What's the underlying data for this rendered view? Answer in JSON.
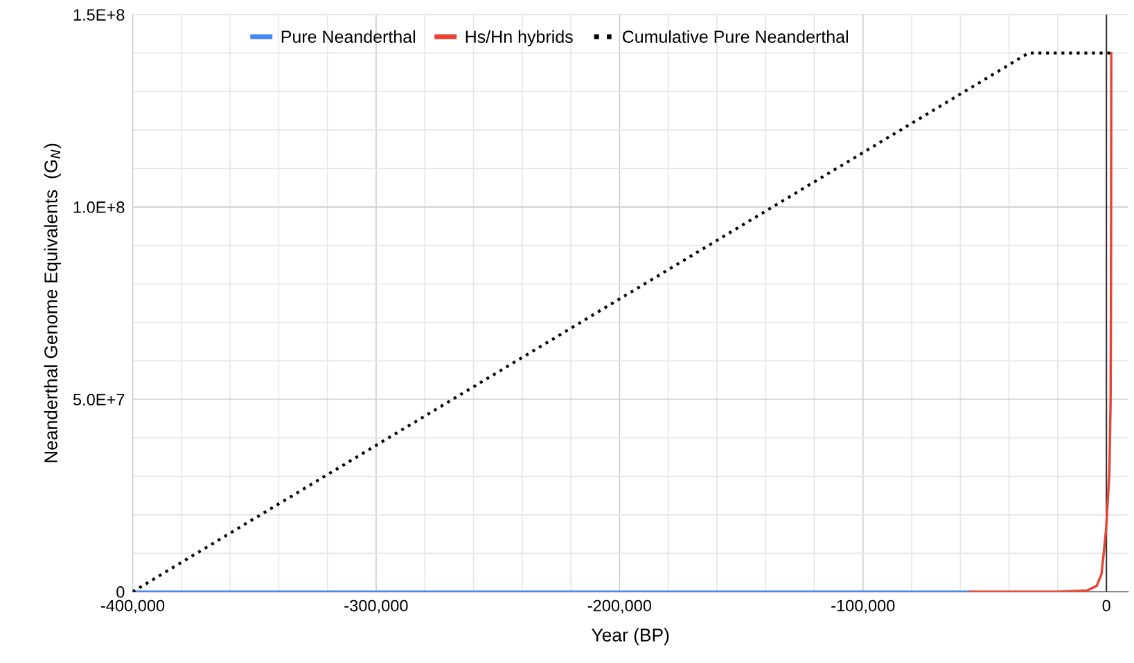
{
  "chart_data": {
    "type": "line",
    "xlabel": "Year (BP)",
    "ylabel": "Neanderthal Genome Equivalents  (G$_{N}$)",
    "series": [
      {
        "name": "Pure Neanderthal",
        "color": "#4285f4",
        "x": [
          -400000,
          -56000
        ],
        "values": [
          0,
          0
        ]
      },
      {
        "name": "Hs/Hn hybrids",
        "color": "#ea4335",
        "x": [
          -56000,
          -20000,
          -8000,
          -4000,
          -2000,
          -200,
          1200,
          1700,
          1900,
          2000
        ],
        "values": [
          0,
          0,
          300000,
          1500000,
          4600000,
          15700000,
          30600000,
          49000000,
          80000000,
          140000000
        ]
      },
      {
        "name": "Cumulative Pure Neanderthal",
        "color": "#000000",
        "line_style": "dotted",
        "x": [
          -400000,
          -32000,
          2000
        ],
        "values": [
          0,
          140000000,
          140000000
        ]
      }
    ],
    "xlim": [
      -400000,
      9000
    ],
    "ylim": [
      0,
      150000000
    ],
    "xticks": [
      {
        "value": -400000,
        "label": "-400,000"
      },
      {
        "value": -380000,
        "label": null
      },
      {
        "value": -360000,
        "label": null
      },
      {
        "value": -340000,
        "label": null
      },
      {
        "value": -320000,
        "label": null
      },
      {
        "value": -300000,
        "label": "-300,000"
      },
      {
        "value": -280000,
        "label": null
      },
      {
        "value": -260000,
        "label": null
      },
      {
        "value": -240000,
        "label": null
      },
      {
        "value": -220000,
        "label": null
      },
      {
        "value": -200000,
        "label": "-200,000"
      },
      {
        "value": -180000,
        "label": null
      },
      {
        "value": -160000,
        "label": null
      },
      {
        "value": -140000,
        "label": null
      },
      {
        "value": -120000,
        "label": null
      },
      {
        "value": -100000,
        "label": "-100,000"
      },
      {
        "value": -80000,
        "label": null
      },
      {
        "value": -60000,
        "label": null
      },
      {
        "value": -40000,
        "label": null
      },
      {
        "value": -20000,
        "label": null
      },
      {
        "value": 0,
        "label": "0"
      }
    ],
    "yticks": [
      0,
      {
        "value": 10000000,
        "label": null
      },
      {
        "value": 20000000,
        "label": null
      },
      {
        "value": 30000000,
        "label": null
      },
      {
        "value": 40000000,
        "label": null
      },
      {
        "value": 50000000,
        "label": "5.0E+7"
      },
      {
        "value": 60000000,
        "label": null
      },
      {
        "value": 70000000,
        "label": null
      },
      {
        "value": 80000000,
        "label": null
      },
      {
        "value": 90000000,
        "label": null
      },
      {
        "value": 100000000,
        "label": "1.0E+8"
      },
      {
        "value": 110000000,
        "label": null
      },
      {
        "value": 120000000,
        "label": null
      },
      {
        "value": 130000000,
        "label": null
      },
      {
        "value": 140000000,
        "label": null
      },
      {
        "value": 150000000,
        "label": "1.5E+8"
      }
    ],
    "ref_lines": [
      {
        "axis": "x",
        "value": 0,
        "color": "#333333"
      }
    ],
    "grid": true,
    "legend": "top"
  }
}
